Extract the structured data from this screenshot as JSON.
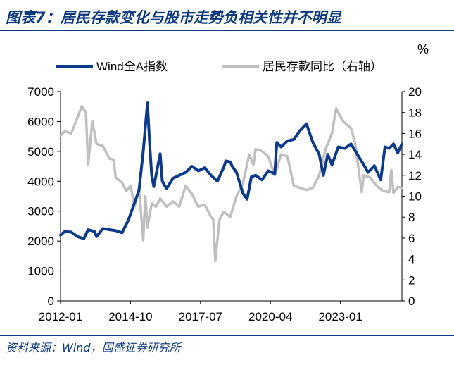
{
  "figure": {
    "title": "图表7：居民存款变化与股市走势负相关性并不明显",
    "source": "资料来源：Wind，国盛证券研究所"
  },
  "chart_data": {
    "type": "line",
    "right_unit": "%",
    "x_axis": {
      "range": [
        "2012-01",
        "2025-06"
      ],
      "ticks": [
        "2012-01",
        "2014-10",
        "2017-07",
        "2020-04",
        "2023-01"
      ]
    },
    "y_left": {
      "range": [
        0,
        7000
      ],
      "ticks": [
        0,
        1000,
        2000,
        3000,
        4000,
        5000,
        6000,
        7000
      ]
    },
    "y_right": {
      "range": [
        0,
        20
      ],
      "ticks": [
        0,
        2,
        4,
        6,
        8,
        10,
        12,
        14,
        16,
        18,
        20
      ]
    },
    "grid": false,
    "legend_position": "top",
    "series": [
      {
        "name": "Wind全A指数",
        "axis": "left",
        "color": "#0b3a8c",
        "points": [
          [
            "2012-01",
            2200
          ],
          [
            "2012-03",
            2320
          ],
          [
            "2012-06",
            2300
          ],
          [
            "2012-09",
            2150
          ],
          [
            "2012-12",
            2080
          ],
          [
            "2013-02",
            2380
          ],
          [
            "2013-05",
            2320
          ],
          [
            "2013-06",
            2150
          ],
          [
            "2013-09",
            2420
          ],
          [
            "2013-12",
            2380
          ],
          [
            "2014-03",
            2350
          ],
          [
            "2014-06",
            2280
          ],
          [
            "2014-09",
            2700
          ],
          [
            "2014-12",
            3300
          ],
          [
            "2015-02",
            3700
          ],
          [
            "2015-04",
            5000
          ],
          [
            "2015-06",
            6620
          ],
          [
            "2015-07",
            5300
          ],
          [
            "2015-08",
            4200
          ],
          [
            "2015-09",
            3820
          ],
          [
            "2015-12",
            4920
          ],
          [
            "2016-01",
            4000
          ],
          [
            "2016-03",
            3750
          ],
          [
            "2016-06",
            4100
          ],
          [
            "2016-09",
            4200
          ],
          [
            "2016-12",
            4300
          ],
          [
            "2017-03",
            4500
          ],
          [
            "2017-06",
            4350
          ],
          [
            "2017-09",
            4450
          ],
          [
            "2017-12",
            4200
          ],
          [
            "2018-03",
            4000
          ],
          [
            "2018-06",
            4480
          ],
          [
            "2018-07",
            4680
          ],
          [
            "2018-09",
            4650
          ],
          [
            "2018-10",
            4500
          ],
          [
            "2018-12",
            4300
          ],
          [
            "2019-03",
            3600
          ],
          [
            "2019-05",
            3400
          ],
          [
            "2019-07",
            4150
          ],
          [
            "2019-09",
            4200
          ],
          [
            "2019-12",
            4050
          ],
          [
            "2020-03",
            4350
          ],
          [
            "2020-06",
            4250
          ],
          [
            "2020-07",
            5300
          ],
          [
            "2020-09",
            5150
          ],
          [
            "2020-12",
            5350
          ],
          [
            "2021-03",
            5400
          ],
          [
            "2021-06",
            5700
          ],
          [
            "2021-09",
            5920
          ],
          [
            "2021-12",
            5300
          ],
          [
            "2022-03",
            4900
          ],
          [
            "2022-05",
            4200
          ],
          [
            "2022-07",
            4900
          ],
          [
            "2022-09",
            4550
          ],
          [
            "2022-12",
            5150
          ],
          [
            "2023-03",
            5100
          ],
          [
            "2023-06",
            5250
          ],
          [
            "2023-09",
            4900
          ],
          [
            "2023-12",
            4550
          ],
          [
            "2024-02",
            4300
          ],
          [
            "2024-05",
            4520
          ],
          [
            "2024-08",
            4050
          ],
          [
            "2024-10",
            5150
          ],
          [
            "2024-12",
            5100
          ],
          [
            "2025-02",
            5250
          ],
          [
            "2025-04",
            4950
          ],
          [
            "2025-06",
            5250
          ]
        ]
      },
      {
        "name": "居民存款同比（右轴）",
        "axis": "right",
        "color": "#bfbfbf",
        "points": [
          [
            "2012-01",
            15.8
          ],
          [
            "2012-03",
            16.2
          ],
          [
            "2012-06",
            16.0
          ],
          [
            "2012-08",
            17.0
          ],
          [
            "2012-11",
            18.6
          ],
          [
            "2013-01",
            18.0
          ],
          [
            "2013-02",
            13.0
          ],
          [
            "2013-04",
            17.2
          ],
          [
            "2013-06",
            15.0
          ],
          [
            "2013-09",
            14.8
          ],
          [
            "2013-12",
            13.6
          ],
          [
            "2014-02",
            13.5
          ],
          [
            "2014-03",
            11.8
          ],
          [
            "2014-06",
            11.3
          ],
          [
            "2014-08",
            10.5
          ],
          [
            "2014-10",
            11.0
          ],
          [
            "2014-12",
            9.0
          ],
          [
            "2015-02",
            10.8
          ],
          [
            "2015-04",
            5.8
          ],
          [
            "2015-05",
            10.0
          ],
          [
            "2015-06",
            7.0
          ],
          [
            "2015-08",
            9.3
          ],
          [
            "2015-10",
            9.0
          ],
          [
            "2015-12",
            9.8
          ],
          [
            "2016-03",
            9.0
          ],
          [
            "2016-06",
            9.5
          ],
          [
            "2016-09",
            9.0
          ],
          [
            "2016-12",
            11.0
          ],
          [
            "2017-03",
            10.2
          ],
          [
            "2017-06",
            9.0
          ],
          [
            "2017-09",
            9.2
          ],
          [
            "2017-12",
            8.0
          ],
          [
            "2018-01",
            7.8
          ],
          [
            "2018-02",
            3.8
          ],
          [
            "2018-04",
            7.8
          ],
          [
            "2018-06",
            8.5
          ],
          [
            "2018-09",
            8.0
          ],
          [
            "2018-12",
            10.0
          ],
          [
            "2019-03",
            11.2
          ],
          [
            "2019-06",
            14.0
          ],
          [
            "2019-08",
            13.0
          ],
          [
            "2019-09",
            14.5
          ],
          [
            "2019-12",
            14.3
          ],
          [
            "2020-03",
            13.8
          ],
          [
            "2020-06",
            12.0
          ],
          [
            "2020-09",
            14.0
          ],
          [
            "2020-12",
            13.8
          ],
          [
            "2021-03",
            11.0
          ],
          [
            "2021-06",
            10.8
          ],
          [
            "2021-09",
            10.6
          ],
          [
            "2021-12",
            10.8
          ],
          [
            "2022-03",
            12.0
          ],
          [
            "2022-06",
            14.5
          ],
          [
            "2022-09",
            16.0
          ],
          [
            "2022-11",
            18.4
          ],
          [
            "2023-02",
            17.2
          ],
          [
            "2023-06",
            16.5
          ],
          [
            "2023-08",
            15.0
          ],
          [
            "2023-11",
            10.4
          ],
          [
            "2023-12",
            12.0
          ],
          [
            "2024-03",
            11.8
          ],
          [
            "2024-06",
            11.0
          ],
          [
            "2024-09",
            10.5
          ],
          [
            "2024-12",
            10.4
          ],
          [
            "2025-01",
            12.5
          ],
          [
            "2025-02",
            10.3
          ],
          [
            "2025-04",
            10.9
          ],
          [
            "2025-06",
            10.8
          ]
        ]
      }
    ]
  }
}
